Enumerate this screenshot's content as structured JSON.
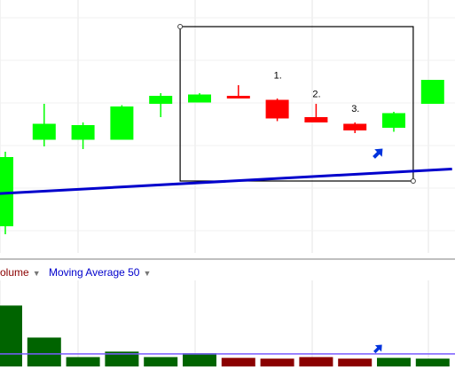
{
  "legend": {
    "volume_label": "olume",
    "ma_label": "Moving Average 50",
    "volume_color": "#8B0000",
    "ma_color": "#0000CC",
    "dropdown_icon": "triangle-down-icon"
  },
  "chart_data": {
    "type": "candlestick",
    "title": "",
    "xlabel": "",
    "ylabel": "",
    "grid": true,
    "colors": {
      "up": "#00FF00",
      "down": "#FF0000",
      "ma": "#0000CC",
      "volume_up": "#006400",
      "volume_down": "#8B0000"
    },
    "candles": [
      {
        "open": 20,
        "close": 72,
        "high": 76,
        "low": 14,
        "volume": 78
      },
      {
        "open": 85,
        "close": 97,
        "high": 112,
        "low": 80,
        "volume": 37
      },
      {
        "open": 85,
        "close": 96,
        "high": 98,
        "low": 78,
        "volume": 12
      },
      {
        "open": 85,
        "close": 110,
        "high": 111,
        "low": 85,
        "volume": 19
      },
      {
        "open": 112,
        "close": 118,
        "high": 120,
        "low": 102,
        "volume": 12
      },
      {
        "open": 113,
        "close": 119,
        "high": 120,
        "low": 113,
        "volume": 17
      },
      {
        "open": 118,
        "close": 117,
        "high": 126,
        "low": 117,
        "volume": 11
      },
      {
        "open": 115,
        "close": 101,
        "high": 116,
        "low": 99,
        "volume": 10
      },
      {
        "open": 102,
        "close": 98,
        "high": 112,
        "low": 98,
        "volume": 12
      },
      {
        "open": 97,
        "close": 92,
        "high": 98,
        "low": 90,
        "volume": 10
      },
      {
        "open": 94,
        "close": 105,
        "high": 106,
        "low": 91,
        "volume": 11
      },
      {
        "open": 112,
        "close": 130,
        "high": 130,
        "low": 112,
        "volume": 10
      }
    ],
    "moving_average_50": [
      {
        "x": -0.5,
        "y": 44
      },
      {
        "x": 11.5,
        "y": 63
      }
    ],
    "volume_average": 16,
    "price_range": [
      0,
      190
    ],
    "volume_range": [
      0,
      100
    ],
    "annotations": {
      "labels": [
        {
          "text": "1.",
          "candle": 7,
          "price": 131
        },
        {
          "text": "2.",
          "candle": 8,
          "price": 117
        },
        {
          "text": "3.",
          "candle": 9,
          "price": 106
        }
      ],
      "selection_box": {
        "from_candle": 4.5,
        "to_candle": 10.5,
        "price_top": 170,
        "price_bottom": 54
      },
      "arrow_price": {
        "candle": 9.6,
        "price": 75,
        "icon": "arrow-icon"
      },
      "arrow_volume": {
        "candle": 9.6,
        "volume": 23,
        "icon": "arrow-icon"
      }
    }
  }
}
